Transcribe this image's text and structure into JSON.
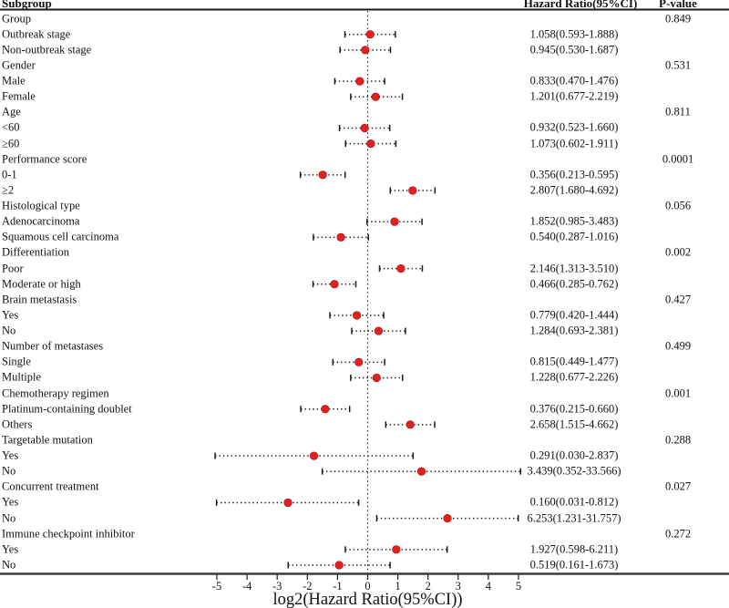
{
  "header": {
    "subgroup": "Subgroup",
    "hazard_ratio": "Hazard Ratio(95%CI)",
    "p_value": "P-value"
  },
  "chart_data": {
    "type": "forest",
    "title": "",
    "xlabel": "log2(Hazard Ratio(95%CI))",
    "x_scale": "log2",
    "x_ticks": [
      -5,
      -4,
      -3,
      -2,
      -1,
      0,
      1,
      2,
      3,
      4,
      5
    ],
    "xlim": [
      -5.5,
      5.5
    ],
    "reference_line": 0,
    "grid": false,
    "marker_color": "#e32020",
    "marker_edge_color": "#b01010",
    "line_color": "#1a1a1a",
    "axis_line_color": "#3c3c3c",
    "rows": [
      {
        "label": "Group",
        "p": "0.849"
      },
      {
        "label": "Outbreak stage",
        "hr": 1.058,
        "lo": 0.593,
        "hi": 1.888,
        "text": "1.058(0.593-1.888)"
      },
      {
        "label": "Non-outbreak stage",
        "hr": 0.945,
        "lo": 0.53,
        "hi": 1.687,
        "text": "0.945(0.530-1.687)"
      },
      {
        "label": "Gender",
        "p": "0.531"
      },
      {
        "label": "Male",
        "hr": 0.833,
        "lo": 0.47,
        "hi": 1.476,
        "text": "0.833(0.470-1.476)"
      },
      {
        "label": "Female",
        "hr": 1.201,
        "lo": 0.677,
        "hi": 2.219,
        "text": "1.201(0.677-2.219)"
      },
      {
        "label": "Age",
        "p": "0.811"
      },
      {
        "label": "<60",
        "hr": 0.932,
        "lo": 0.523,
        "hi": 1.66,
        "text": "0.932(0.523-1.660)"
      },
      {
        "label": "≥60",
        "hr": 1.073,
        "lo": 0.602,
        "hi": 1.911,
        "text": "1.073(0.602-1.911)"
      },
      {
        "label": "Performance score",
        "p": "0.0001"
      },
      {
        "label": "0-1",
        "hr": 0.356,
        "lo": 0.213,
        "hi": 0.595,
        "text": "0.356(0.213-0.595)"
      },
      {
        "label": "≥2",
        "hr": 2.807,
        "lo": 1.68,
        "hi": 4.692,
        "text": "2.807(1.680-4.692)"
      },
      {
        "label": "Histological type",
        "p": "0.056"
      },
      {
        "label": "Adenocarcinoma",
        "hr": 1.852,
        "lo": 0.985,
        "hi": 3.483,
        "text": "1.852(0.985-3.483)"
      },
      {
        "label": "Squamous cell carcinoma",
        "hr": 0.54,
        "lo": 0.287,
        "hi": 1.016,
        "text": "0.540(0.287-1.016)"
      },
      {
        "label": "Differentiation",
        "p": "0.002"
      },
      {
        "label": "Poor",
        "hr": 2.146,
        "lo": 1.313,
        "hi": 3.51,
        "text": "2.146(1.313-3.510)"
      },
      {
        "label": "Moderate or high",
        "hr": 0.466,
        "lo": 0.285,
        "hi": 0.762,
        "text": "0.466(0.285-0.762)"
      },
      {
        "label": "Brain metastasis",
        "p": "0.427"
      },
      {
        "label": "Yes",
        "hr": 0.779,
        "lo": 0.42,
        "hi": 1.444,
        "text": "0.779(0.420-1.444)"
      },
      {
        "label": "No",
        "hr": 1.284,
        "lo": 0.693,
        "hi": 2.381,
        "text": "1.284(0.693-2.381)"
      },
      {
        "label": "Number of metastases",
        "p": "0.499"
      },
      {
        "label": "Single",
        "hr": 0.815,
        "lo": 0.449,
        "hi": 1.477,
        "text": "0.815(0.449-1.477)"
      },
      {
        "label": "Multiple",
        "hr": 1.228,
        "lo": 0.677,
        "hi": 2.226,
        "text": "1.228(0.677-2.226)"
      },
      {
        "label": "Chemotherapy regimen",
        "p": "0.001"
      },
      {
        "label": "Platinum-containing doublet",
        "hr": 0.376,
        "lo": 0.215,
        "hi": 0.66,
        "text": "0.376(0.215-0.660)"
      },
      {
        "label": "Others",
        "hr": 2.658,
        "lo": 1.515,
        "hi": 4.662,
        "text": "2.658(1.515-4.662)"
      },
      {
        "label": "Targetable mutation",
        "p": "0.288"
      },
      {
        "label": "Yes",
        "hr": 0.291,
        "lo": 0.03,
        "hi": 2.837,
        "text": "0.291(0.030-2.837)"
      },
      {
        "label": "No",
        "hr": 3.439,
        "lo": 0.352,
        "hi": 33.566,
        "text": "3.439(0.352-33.566)"
      },
      {
        "label": "Concurrent treatment",
        "p": "0.027"
      },
      {
        "label": "Yes",
        "hr": 0.16,
        "lo": 0.031,
        "hi": 0.812,
        "text": "0.160(0.031-0.812)"
      },
      {
        "label": "No",
        "hr": 6.253,
        "lo": 1.231,
        "hi": 31.757,
        "text": "6.253(1.231-31.757)"
      },
      {
        "label": "Immune checkpoint inhibitor",
        "p": "0.272"
      },
      {
        "label": "Yes",
        "hr": 1.927,
        "lo": 0.598,
        "hi": 6.211,
        "text": "1.927(0.598-6.211)"
      },
      {
        "label": "No",
        "hr": 0.519,
        "lo": 0.161,
        "hi": 1.673,
        "text": "0.519(0.161-1.673)"
      }
    ]
  }
}
